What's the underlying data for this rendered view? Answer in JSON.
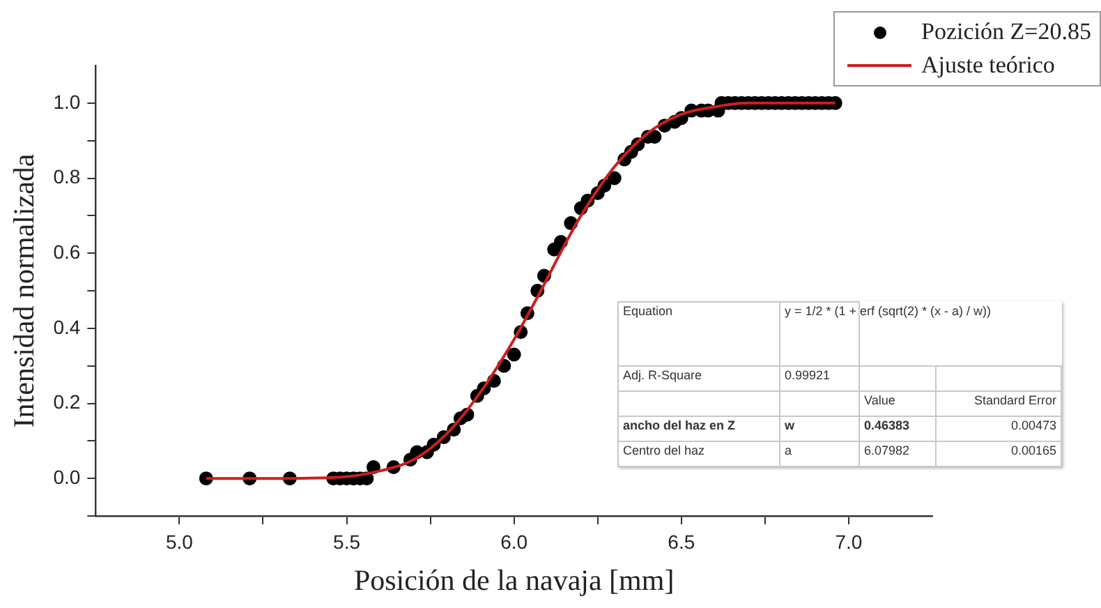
{
  "chart_data": {
    "type": "scatter",
    "xlabel": "Posición de la navaja [mm]",
    "ylabel": "Intensidad normalizada",
    "xlim": [
      4.75,
      7.25
    ],
    "ylim": [
      -0.1,
      1.1
    ],
    "xticks": [
      {
        "value": 5,
        "label": "5.0"
      },
      {
        "value": 5.25,
        "label": null
      },
      {
        "value": 5.5,
        "label": "5.5"
      },
      {
        "value": 5.75,
        "label": null
      },
      {
        "value": 6,
        "label": "6.0"
      },
      {
        "value": 6.25,
        "label": null
      },
      {
        "value": 6.5,
        "label": "6.5"
      },
      {
        "value": 6.75,
        "label": null
      },
      {
        "value": 7,
        "label": "7.0"
      }
    ],
    "yticks": [
      {
        "value": -0.1,
        "label": null
      },
      {
        "value": 0,
        "label": "0.0"
      },
      {
        "value": 0.1,
        "label": null
      },
      {
        "value": 0.2,
        "label": "0.2"
      },
      {
        "value": 0.3,
        "label": null
      },
      {
        "value": 0.4,
        "label": "0.4"
      },
      {
        "value": 0.5,
        "label": null
      },
      {
        "value": 0.6,
        "label": "0.6"
      },
      {
        "value": 0.7,
        "label": null
      },
      {
        "value": 0.8,
        "label": "0.8"
      },
      {
        "value": 0.9,
        "label": null
      },
      {
        "value": 1,
        "label": "1.0"
      }
    ],
    "grid": false,
    "legend": "top right",
    "series": [
      {
        "name": "Pozición Z=20.85",
        "type": "scatter",
        "marker": "circle",
        "color": "#000000",
        "x": [
          5.08,
          5.21,
          5.33,
          5.46,
          5.48,
          5.5,
          5.52,
          5.54,
          5.56,
          5.58,
          5.64,
          5.69,
          5.71,
          5.74,
          5.76,
          5.79,
          5.82,
          5.84,
          5.86,
          5.89,
          5.91,
          5.94,
          5.97,
          6.0,
          6.02,
          6.04,
          6.07,
          6.09,
          6.12,
          6.14,
          6.17,
          6.2,
          6.22,
          6.25,
          6.27,
          6.3,
          6.33,
          6.35,
          6.37,
          6.4,
          6.42,
          6.45,
          6.48,
          6.5,
          6.53,
          6.56,
          6.58,
          6.61,
          6.62,
          6.64,
          6.66,
          6.68,
          6.7,
          6.72,
          6.74,
          6.76,
          6.78,
          6.8,
          6.82,
          6.84,
          6.86,
          6.88,
          6.9,
          6.92,
          6.94,
          6.96
        ],
        "values": [
          0,
          0,
          0,
          0,
          0,
          0,
          0,
          0,
          0,
          0.03,
          0.03,
          0.05,
          0.07,
          0.07,
          0.09,
          0.11,
          0.13,
          0.16,
          0.17,
          0.22,
          0.24,
          0.26,
          0.3,
          0.33,
          0.39,
          0.44,
          0.5,
          0.54,
          0.61,
          0.63,
          0.68,
          0.72,
          0.74,
          0.76,
          0.78,
          0.8,
          0.85,
          0.87,
          0.89,
          0.91,
          0.91,
          0.94,
          0.95,
          0.96,
          0.98,
          0.98,
          0.98,
          0.98,
          1,
          1,
          1,
          1,
          1,
          1,
          1,
          1,
          1,
          1,
          1,
          1,
          1,
          1,
          1,
          1,
          1,
          1
        ]
      },
      {
        "name": "Ajuste teórico",
        "type": "line",
        "marker": "none",
        "line_style": "solid",
        "color": "#cc1f1f",
        "x": [
          5.08,
          5.3,
          5.5,
          5.6,
          5.7,
          5.8,
          5.9,
          6.0,
          6.08,
          6.15,
          6.2,
          6.3,
          6.4,
          6.5,
          6.6,
          6.7,
          6.96
        ],
        "values": [
          0,
          0,
          0.005,
          0.02,
          0.05,
          0.12,
          0.23,
          0.37,
          0.5,
          0.62,
          0.7,
          0.83,
          0.92,
          0.97,
          0.99,
          1,
          1
        ]
      }
    ],
    "annotations": [
      "Equation",
      "y = 1/2 * (1 + erf (sqrt(2) * (x - a) / w))",
      "Adj. R-Square",
      "0.99921",
      "Value",
      "Standard Error",
      "ancho del haz en Z",
      "w",
      "0.46383",
      "0.00473",
      "Centro del haz",
      "a",
      "6.07982",
      "0.00165"
    ]
  }
}
